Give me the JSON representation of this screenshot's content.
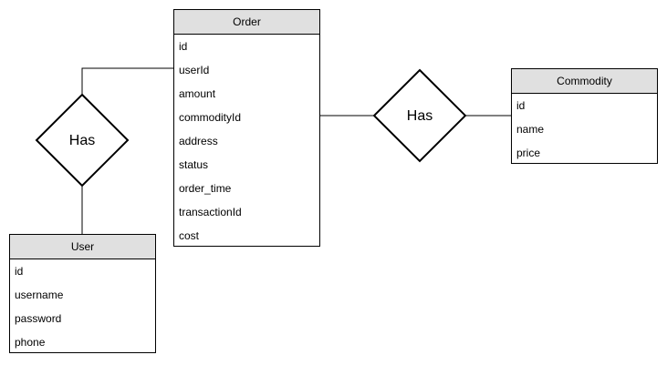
{
  "entities": {
    "order": {
      "title": "Order",
      "attributes": [
        "id",
        "userId",
        "amount",
        "commodityId",
        "address",
        "status",
        "order_time",
        "transactionId",
        "cost"
      ]
    },
    "user": {
      "title": "User",
      "attributes": [
        "id",
        "username",
        "password",
        "phone"
      ]
    },
    "commodity": {
      "title": "Commodity",
      "attributes": [
        "id",
        "name",
        "price"
      ]
    }
  },
  "relationships": {
    "user_order": {
      "label": "Has"
    },
    "order_commodity": {
      "label": "Has"
    }
  }
}
